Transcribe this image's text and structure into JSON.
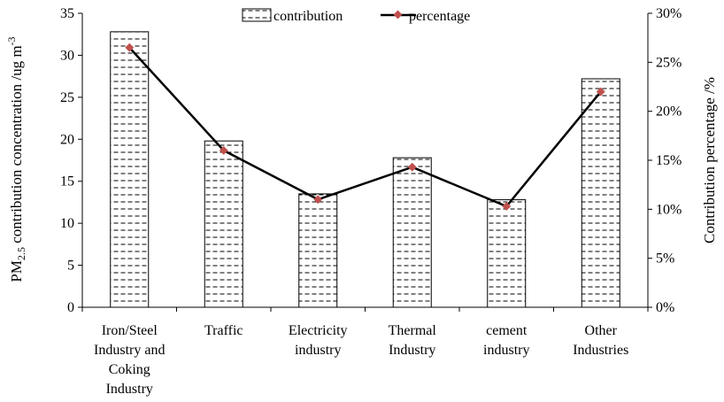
{
  "chart_data": {
    "type": "bar",
    "categories": [
      [
        "Iron/Steel",
        "Industry and",
        "Coking",
        "Industry"
      ],
      [
        "Traffic"
      ],
      [
        "Electricity",
        "industry"
      ],
      [
        "Thermal",
        "Industry"
      ],
      [
        "cement",
        "industry"
      ],
      [
        "Other",
        "Industries"
      ]
    ],
    "series": [
      {
        "name": "contribution",
        "type": "bar",
        "axis": "left",
        "values": [
          32.8,
          19.8,
          13.5,
          17.8,
          12.8,
          27.2
        ]
      },
      {
        "name": "percentage",
        "type": "line",
        "axis": "right",
        "values": [
          26.5,
          16.0,
          11.0,
          14.3,
          10.3,
          22.0
        ]
      }
    ],
    "ylabel_left": {
      "prefix": "PM",
      "sub": "2.5",
      "suffix": " contribution concentration /ug m",
      "sup": "-3"
    },
    "ylabel_right": "Contribution percentage /%",
    "ylim_left": [
      0,
      35
    ],
    "ylim_right": [
      0,
      30
    ],
    "yticks_left": [
      "0",
      "5",
      "10",
      "15",
      "20",
      "25",
      "30",
      "35"
    ],
    "yticks_right": [
      "0%",
      "5%",
      "10%",
      "15%",
      "20%",
      "25%",
      "30%"
    ],
    "legend": {
      "placement": "top-center"
    },
    "grid": false,
    "colors": {
      "line": "#000000",
      "marker": "#c0504d",
      "bar_edge": "#000000",
      "bar_pattern": "#000000"
    }
  }
}
